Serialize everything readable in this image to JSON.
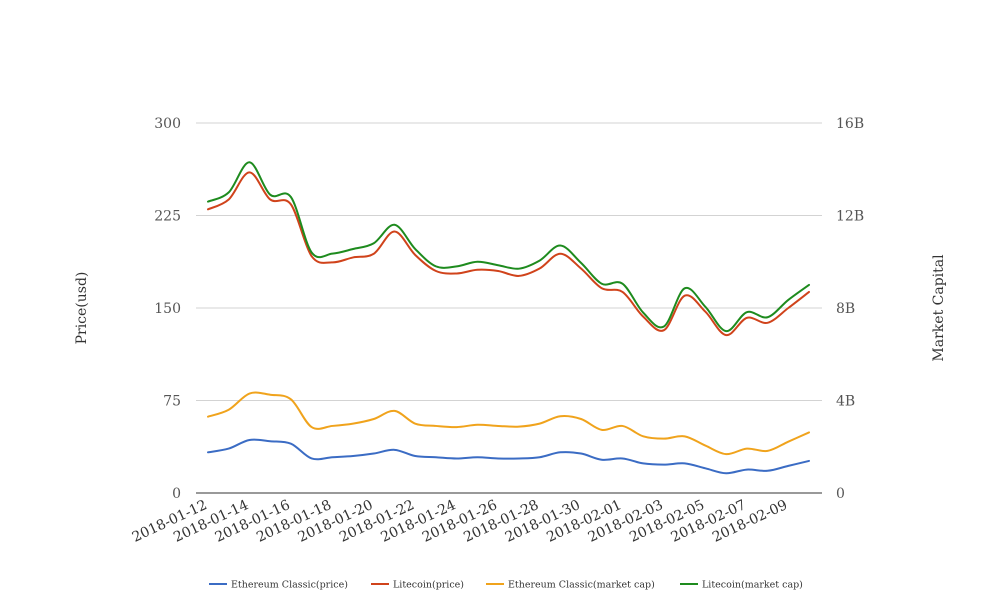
{
  "chart_data": {
    "type": "line",
    "x_tick_labels": [
      "2018-01-12",
      "2018-01-14",
      "2018-01-16",
      "2018-01-18",
      "2018-01-20",
      "2018-01-22",
      "2018-01-24",
      "2018-01-26",
      "2018-01-28",
      "2018-01-30",
      "2018-02-01",
      "2018-02-03",
      "2018-02-05",
      "2018-02-07",
      "2018-02-09"
    ],
    "x": [
      "2018-01-12",
      "2018-01-13",
      "2018-01-14",
      "2018-01-15",
      "2018-01-16",
      "2018-01-17",
      "2018-01-18",
      "2018-01-19",
      "2018-01-20",
      "2018-01-21",
      "2018-01-22",
      "2018-01-23",
      "2018-01-24",
      "2018-01-25",
      "2018-01-26",
      "2018-01-27",
      "2018-01-28",
      "2018-01-29",
      "2018-01-30",
      "2018-01-31",
      "2018-02-01",
      "2018-02-02",
      "2018-02-03",
      "2018-02-04",
      "2018-02-05",
      "2018-02-06",
      "2018-02-07",
      "2018-02-08",
      "2018-02-09",
      "2018-02-10"
    ],
    "ylabel": "Price(usd)",
    "y2label": "Market Capital",
    "ylim": [
      0,
      300
    ],
    "y_ticks": [
      "0",
      "75",
      "150",
      "225",
      "300"
    ],
    "y2lim": [
      0,
      16
    ],
    "y2_ticks": [
      "0",
      "4B",
      "8B",
      "12B",
      "16B"
    ],
    "grid": true,
    "legend_position": "bottom",
    "series": [
      {
        "name": "Ethereum Classic(price)",
        "axis": "left",
        "color": "#3b6cc4",
        "values": [
          33,
          36,
          43,
          42,
          40,
          28,
          29,
          30,
          32,
          35,
          30,
          29,
          28,
          29,
          28,
          28,
          29,
          33,
          32,
          27,
          28,
          24,
          23,
          24,
          20,
          16,
          19,
          18,
          22,
          26
        ]
      },
      {
        "name": "Litecoin(price)",
        "axis": "left",
        "color": "#d0431b",
        "values": [
          230,
          238,
          260,
          238,
          234,
          192,
          187,
          191,
          194,
          212,
          193,
          180,
          178,
          181,
          180,
          176,
          182,
          194,
          182,
          166,
          163,
          143,
          132,
          160,
          147,
          128,
          142,
          138,
          150,
          163
        ]
      },
      {
        "name": "Ethereum Classic(market cap)",
        "axis": "right",
        "color": "#f0a31c",
        "values": [
          3.3,
          3.6,
          4.3,
          4.25,
          4.05,
          2.85,
          2.9,
          3.0,
          3.2,
          3.55,
          3.0,
          2.9,
          2.85,
          2.95,
          2.9,
          2.87,
          3.0,
          3.32,
          3.2,
          2.73,
          2.9,
          2.45,
          2.35,
          2.45,
          2.05,
          1.68,
          1.92,
          1.82,
          2.22,
          2.62
        ]
      },
      {
        "name": "Litecoin(market cap)",
        "axis": "right",
        "color": "#1e8b1e",
        "values": [
          12.6,
          13.0,
          14.3,
          12.9,
          12.8,
          10.4,
          10.35,
          10.55,
          10.8,
          11.6,
          10.55,
          9.8,
          9.8,
          10.0,
          9.85,
          9.7,
          10.05,
          10.7,
          9.95,
          9.05,
          9.05,
          7.8,
          7.2,
          8.85,
          8.05,
          7.0,
          7.82,
          7.6,
          8.35,
          9.0
        ]
      }
    ]
  }
}
